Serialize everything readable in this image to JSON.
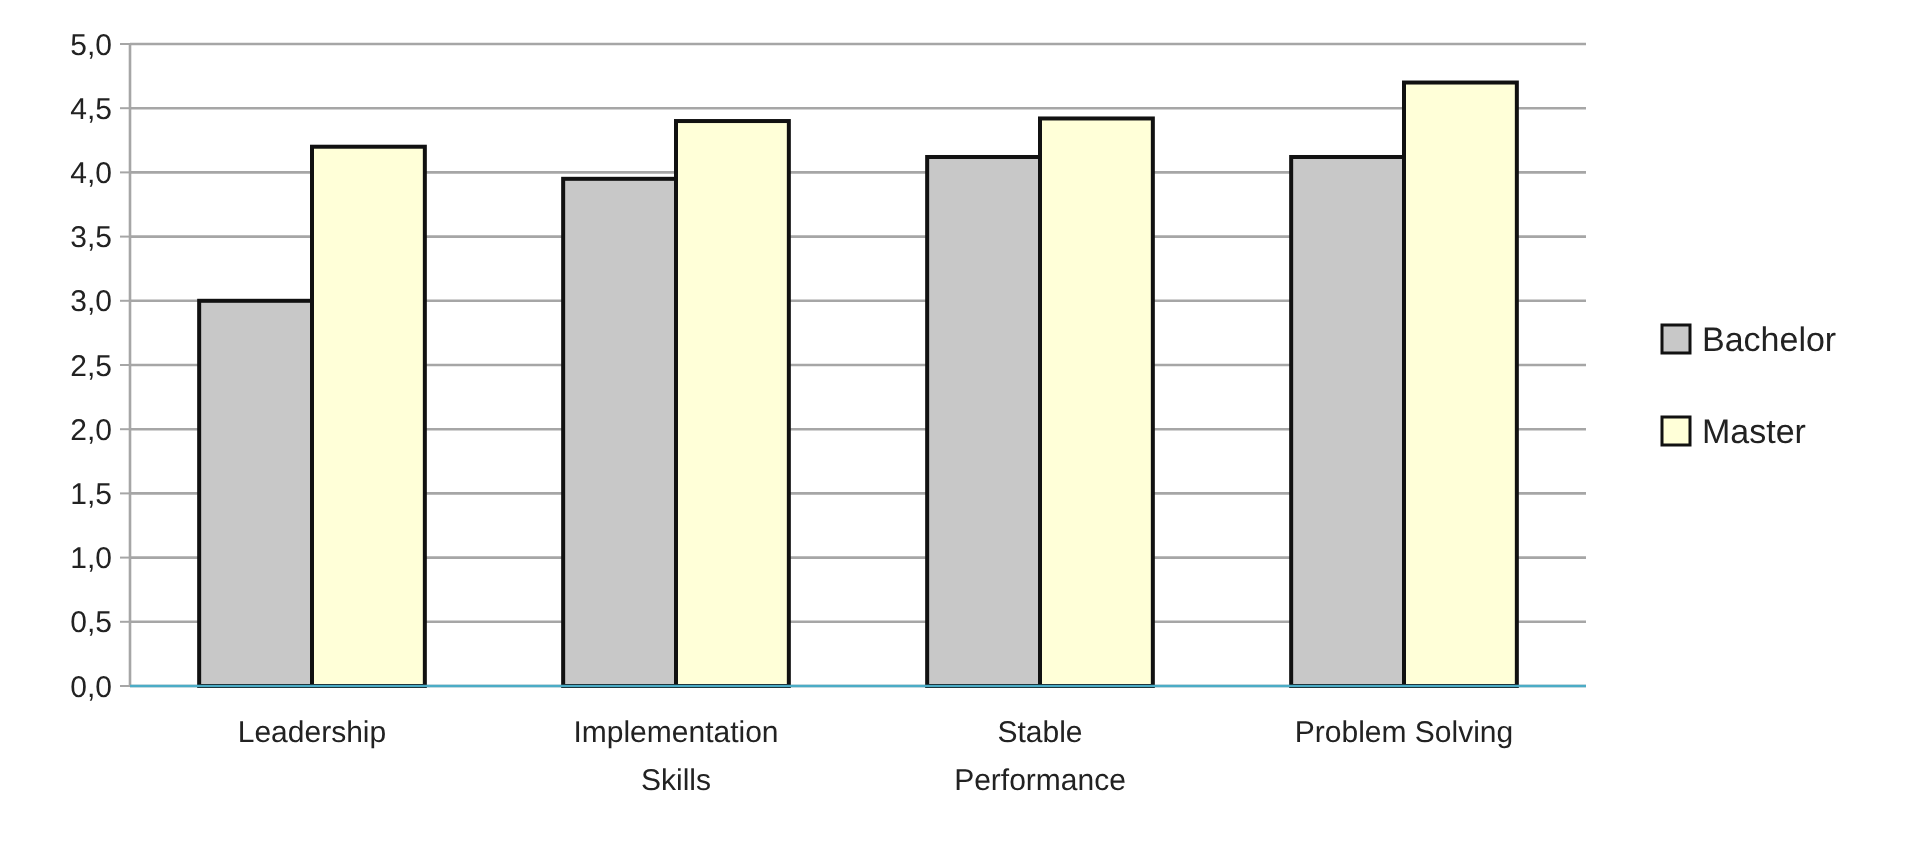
{
  "chart_data": {
    "type": "bar",
    "categories": [
      "Leadership",
      "Implementation Skills",
      "Stable Performance",
      "Problem Solving"
    ],
    "series": [
      {
        "name": "Bachelor",
        "color": "#c8c8c8",
        "values": [
          3.0,
          3.95,
          4.12,
          4.12
        ]
      },
      {
        "name": "Master",
        "color": "#ffffd8",
        "values": [
          4.2,
          4.4,
          4.42,
          4.7
        ]
      }
    ],
    "ylim": [
      0,
      5
    ],
    "yticks": [
      {
        "value": 0,
        "label": "0,0"
      },
      {
        "value": 0.5,
        "label": "0,5"
      },
      {
        "value": 1,
        "label": "1,0"
      },
      {
        "value": 1.5,
        "label": "1,5"
      },
      {
        "value": 2,
        "label": "2,0"
      },
      {
        "value": 2.5,
        "label": "2,5"
      },
      {
        "value": 3,
        "label": "3,0"
      },
      {
        "value": 3.5,
        "label": "3,5"
      },
      {
        "value": 4,
        "label": "4,0"
      },
      {
        "value": 4.5,
        "label": "4,5"
      },
      {
        "value": 5,
        "label": "5,0"
      }
    ],
    "grid": "y",
    "legend": "right"
  }
}
